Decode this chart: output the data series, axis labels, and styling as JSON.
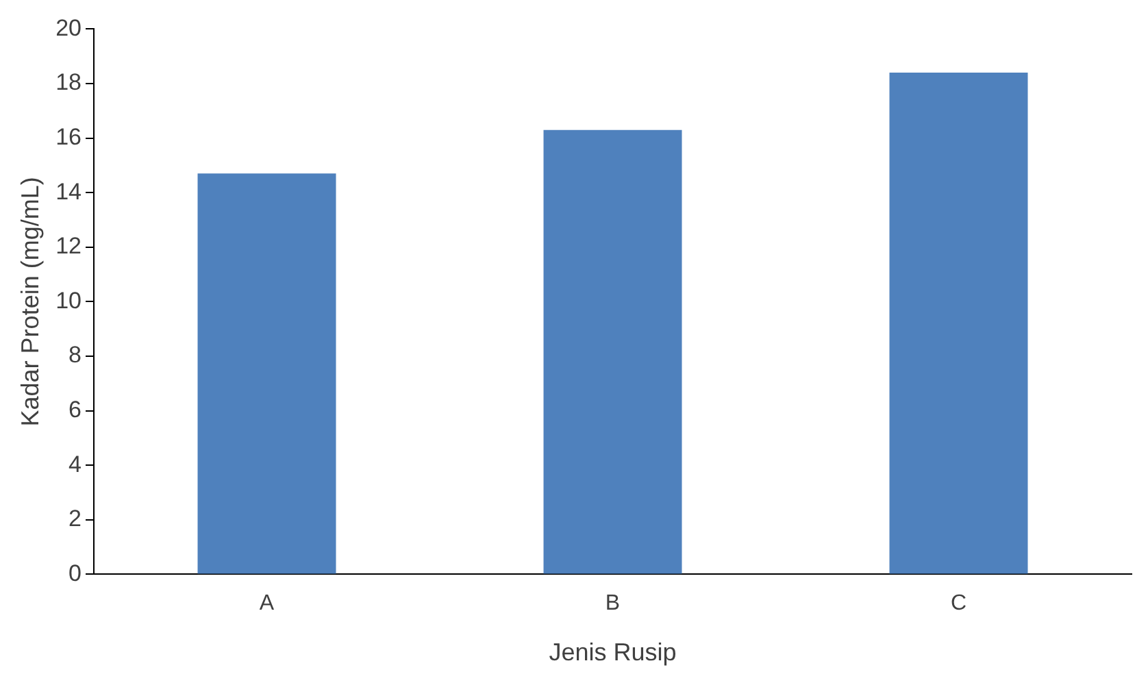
{
  "chart_data": {
    "type": "bar",
    "xlabel": "Jenis Rusip",
    "ylabel": "Kadar Protein (mg/mL)",
    "categories": [
      "A",
      "B",
      "C"
    ],
    "values": [
      14.7,
      16.3,
      18.4
    ],
    "color": "#4f81bd",
    "ylim": [
      0,
      20
    ],
    "yticks": [
      0,
      2,
      4,
      6,
      8,
      10,
      12,
      14,
      16,
      18,
      20
    ],
    "grid": false,
    "legend": false
  }
}
